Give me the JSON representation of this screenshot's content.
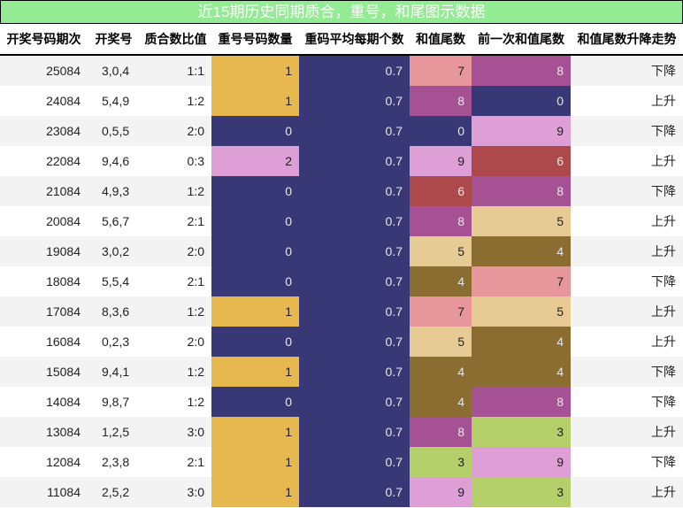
{
  "title": "近15期历史同期质合，重号，和尾图示数据",
  "columns": [
    "开奖号码期次",
    "开奖号",
    "质合数比值",
    "重号号码数量",
    "重码平均每期个数",
    "和值尾数",
    "前一次和值尾数",
    "和值尾数升降走势"
  ],
  "colors": {
    "title_bg": "#93eb93",
    "navy": "#383876",
    "gold": "#e8b850",
    "pink_light": "#de9ed6",
    "salmon": "#e7969c",
    "magenta": "#a55194",
    "brick": "#ad494a",
    "tan": "#e7cb94",
    "olive_brown": "#8c6d31",
    "lime": "#b5cf6b"
  },
  "rows": [
    {
      "issue": "25084",
      "numbers": "3,0,4",
      "ratio": "1:1",
      "repeat": "1",
      "avg": "0.7",
      "tail": "7",
      "prev_tail": "8",
      "trend": "下降",
      "repeat_color": "#e8b850",
      "tail_color": "#e7969c",
      "prev_color": "#a55194"
    },
    {
      "issue": "24084",
      "numbers": "5,4,9",
      "ratio": "1:2",
      "repeat": "1",
      "avg": "0.7",
      "tail": "8",
      "prev_tail": "0",
      "trend": "上升",
      "repeat_color": "#e8b850",
      "tail_color": "#a55194",
      "prev_color": "#383876"
    },
    {
      "issue": "23084",
      "numbers": "0,5,5",
      "ratio": "2:0",
      "repeat": "0",
      "avg": "0.7",
      "tail": "0",
      "prev_tail": "9",
      "trend": "下降",
      "repeat_color": "#383876",
      "tail_color": "#383876",
      "prev_color": "#de9ed6"
    },
    {
      "issue": "22084",
      "numbers": "9,4,6",
      "ratio": "0:3",
      "repeat": "2",
      "avg": "0.7",
      "tail": "9",
      "prev_tail": "6",
      "trend": "上升",
      "repeat_color": "#de9ed6",
      "tail_color": "#de9ed6",
      "prev_color": "#ad494a"
    },
    {
      "issue": "21084",
      "numbers": "4,9,3",
      "ratio": "1:2",
      "repeat": "0",
      "avg": "0.7",
      "tail": "6",
      "prev_tail": "8",
      "trend": "下降",
      "repeat_color": "#383876",
      "tail_color": "#ad494a",
      "prev_color": "#a55194"
    },
    {
      "issue": "20084",
      "numbers": "5,6,7",
      "ratio": "2:1",
      "repeat": "0",
      "avg": "0.7",
      "tail": "8",
      "prev_tail": "5",
      "trend": "上升",
      "repeat_color": "#383876",
      "tail_color": "#a55194",
      "prev_color": "#e7cb94"
    },
    {
      "issue": "19084",
      "numbers": "3,0,2",
      "ratio": "2:0",
      "repeat": "0",
      "avg": "0.7",
      "tail": "5",
      "prev_tail": "4",
      "trend": "上升",
      "repeat_color": "#383876",
      "tail_color": "#e7cb94",
      "prev_color": "#8c6d31"
    },
    {
      "issue": "18084",
      "numbers": "5,5,4",
      "ratio": "2:1",
      "repeat": "0",
      "avg": "0.7",
      "tail": "4",
      "prev_tail": "7",
      "trend": "下降",
      "repeat_color": "#383876",
      "tail_color": "#8c6d31",
      "prev_color": "#e7969c"
    },
    {
      "issue": "17084",
      "numbers": "8,3,6",
      "ratio": "1:2",
      "repeat": "1",
      "avg": "0.7",
      "tail": "7",
      "prev_tail": "5",
      "trend": "上升",
      "repeat_color": "#e8b850",
      "tail_color": "#e7969c",
      "prev_color": "#e7cb94"
    },
    {
      "issue": "16084",
      "numbers": "0,2,3",
      "ratio": "2:0",
      "repeat": "0",
      "avg": "0.7",
      "tail": "5",
      "prev_tail": "4",
      "trend": "上升",
      "repeat_color": "#383876",
      "tail_color": "#e7cb94",
      "prev_color": "#8c6d31"
    },
    {
      "issue": "15084",
      "numbers": "9,4,1",
      "ratio": "1:2",
      "repeat": "1",
      "avg": "0.7",
      "tail": "4",
      "prev_tail": "4",
      "trend": "下降",
      "repeat_color": "#e8b850",
      "tail_color": "#8c6d31",
      "prev_color": "#8c6d31"
    },
    {
      "issue": "14084",
      "numbers": "9,8,7",
      "ratio": "1:2",
      "repeat": "0",
      "avg": "0.7",
      "tail": "4",
      "prev_tail": "8",
      "trend": "下降",
      "repeat_color": "#383876",
      "tail_color": "#8c6d31",
      "prev_color": "#a55194"
    },
    {
      "issue": "13084",
      "numbers": "1,2,5",
      "ratio": "3:0",
      "repeat": "1",
      "avg": "0.7",
      "tail": "8",
      "prev_tail": "3",
      "trend": "上升",
      "repeat_color": "#e8b850",
      "tail_color": "#a55194",
      "prev_color": "#b5cf6b"
    },
    {
      "issue": "12084",
      "numbers": "2,3,8",
      "ratio": "2:1",
      "repeat": "1",
      "avg": "0.7",
      "tail": "3",
      "prev_tail": "9",
      "trend": "下降",
      "repeat_color": "#e8b850",
      "tail_color": "#b5cf6b",
      "prev_color": "#de9ed6"
    },
    {
      "issue": "11084",
      "numbers": "2,5,2",
      "ratio": "3:0",
      "repeat": "1",
      "avg": "0.7",
      "tail": "9",
      "prev_tail": "3",
      "trend": "上升",
      "repeat_color": "#e8b850",
      "tail_color": "#de9ed6",
      "prev_color": "#b5cf6b"
    }
  ]
}
